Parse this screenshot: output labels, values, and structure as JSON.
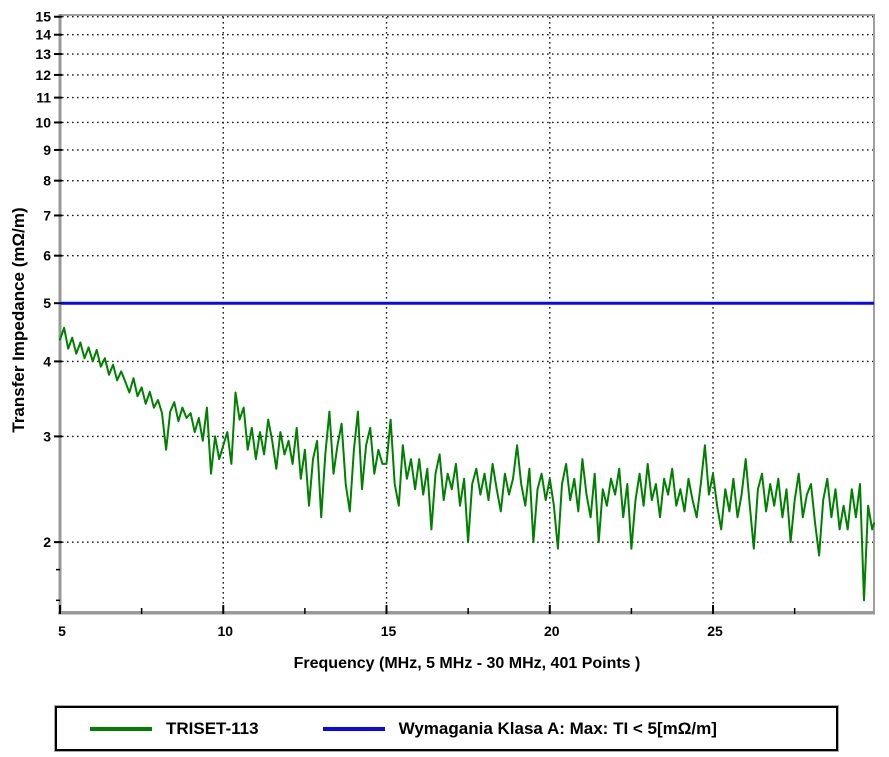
{
  "chart_data": {
    "type": "line",
    "title": "",
    "xlabel": "Frequency (MHz, 5 MHz - 30 MHz, 401 Points )",
    "ylabel": "Transfer Impedance (mΩ/m)",
    "grid": "dotted-black",
    "legend_position": "bottom-box",
    "x_axis": {
      "scale": "linear",
      "min": 5,
      "max": 29.93,
      "major_ticks": [
        5,
        10,
        15,
        20,
        25
      ],
      "minor_ticks": [
        7.5,
        12.5,
        17.5,
        22.5,
        27.5
      ],
      "gridlines": [
        10,
        15,
        20,
        25
      ]
    },
    "y_axis": {
      "scale": "log",
      "min": 1.53,
      "max": 15.1,
      "major_ticks": [
        15,
        14,
        13,
        12,
        11,
        10,
        9,
        8,
        7,
        6,
        5,
        4,
        3,
        2
      ],
      "minor_ticks": [
        1.8,
        1.6
      ],
      "gridlines": [
        15,
        14,
        13,
        12,
        11,
        10,
        9,
        8,
        7,
        6,
        5,
        4,
        3,
        2
      ]
    },
    "series": [
      {
        "name": "TRISET-113",
        "color": "#008000",
        "type": "line",
        "x_start": 5,
        "x_step": 0.125,
        "values": [
          4.35,
          4.55,
          4.2,
          4.38,
          4.12,
          4.3,
          4.05,
          4.22,
          4.0,
          4.18,
          3.92,
          4.05,
          3.8,
          3.95,
          3.72,
          3.85,
          3.7,
          3.55,
          3.75,
          3.5,
          3.62,
          3.4,
          3.56,
          3.35,
          3.45,
          3.28,
          2.85,
          3.3,
          3.42,
          3.18,
          3.35,
          3.22,
          3.28,
          3.05,
          3.22,
          2.95,
          3.35,
          2.6,
          3.0,
          2.75,
          2.9,
          3.05,
          2.7,
          3.55,
          3.2,
          3.35,
          2.85,
          3.1,
          2.75,
          3.05,
          2.8,
          3.2,
          2.95,
          2.65,
          3.05,
          2.8,
          2.95,
          2.7,
          3.1,
          2.55,
          2.85,
          2.3,
          2.75,
          2.95,
          2.2,
          2.8,
          3.3,
          2.6,
          2.9,
          3.15,
          2.5,
          2.25,
          2.85,
          3.3,
          2.45,
          2.9,
          3.1,
          2.6,
          2.85,
          2.7,
          2.7,
          3.2,
          2.5,
          2.3,
          2.9,
          2.55,
          2.75,
          2.45,
          2.75,
          2.4,
          2.65,
          2.1,
          2.6,
          2.8,
          2.35,
          2.6,
          2.45,
          2.7,
          2.3,
          2.55,
          2.0,
          2.5,
          2.65,
          2.4,
          2.6,
          2.35,
          2.7,
          2.45,
          2.25,
          2.6,
          2.4,
          2.55,
          2.9,
          2.5,
          2.3,
          2.65,
          2.0,
          2.45,
          2.6,
          2.35,
          2.55,
          2.3,
          1.95,
          2.5,
          2.7,
          2.35,
          2.55,
          2.25,
          2.75,
          2.4,
          2.2,
          2.6,
          2.0,
          2.45,
          2.3,
          2.55,
          2.4,
          2.65,
          2.2,
          2.5,
          1.95,
          2.35,
          2.6,
          2.3,
          2.7,
          2.35,
          2.5,
          2.2,
          2.55,
          2.4,
          2.65,
          2.3,
          2.45,
          2.25,
          2.55,
          2.35,
          2.2,
          2.5,
          2.9,
          2.4,
          2.6,
          2.3,
          2.1,
          2.45,
          2.25,
          2.55,
          2.2,
          2.4,
          2.75,
          2.3,
          1.95,
          2.45,
          2.6,
          2.25,
          2.5,
          2.3,
          2.55,
          2.2,
          2.45,
          2.0,
          2.35,
          2.6,
          2.2,
          2.4,
          2.5,
          2.15,
          1.9,
          2.35,
          2.55,
          2.2,
          2.45,
          2.1,
          2.3,
          2.1,
          2.45,
          2.2,
          2.5,
          1.6,
          2.3,
          2.1,
          2.15
        ]
      },
      {
        "name": "Wymagania Klasa A: Max: TI < 5[mΩ/m]",
        "color": "#0808F0",
        "type": "hline",
        "value": 5
      }
    ]
  },
  "legend": {
    "items": [
      {
        "label": "TRISET-113",
        "color": "#008000"
      },
      {
        "label": "Wymagania Klasa A: Max: TI < 5[mΩ/m]",
        "color": "#0808F0"
      }
    ]
  },
  "colors": {
    "series_green": "#008000",
    "limit_blue": "#0808F0",
    "axis_frame": "#a0a0a0",
    "grid_dots": "#1a1a1a",
    "text": "#000000"
  }
}
